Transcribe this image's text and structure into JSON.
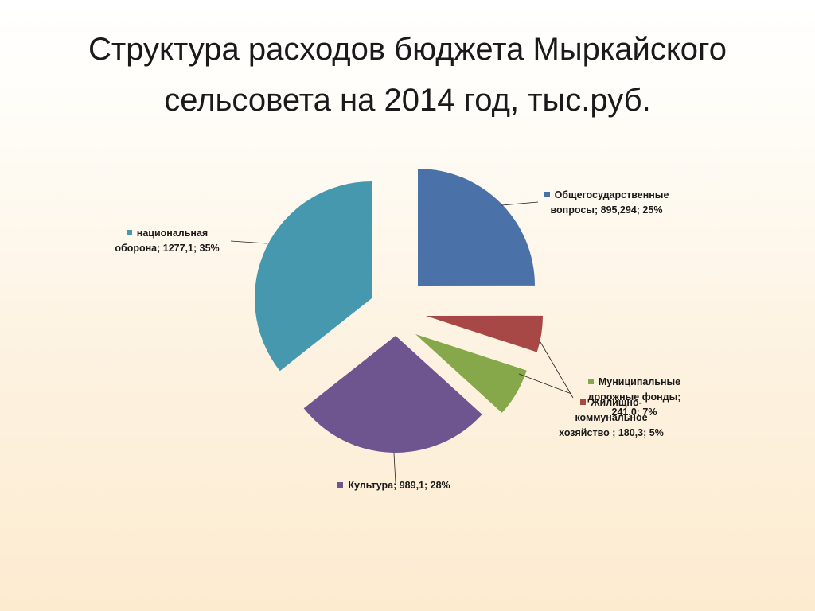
{
  "title": {
    "line1": "Структура расходов бюджета Мыркайского",
    "line2": "сельсовета на 2014 год, тыс.руб."
  },
  "chart_data": {
    "type": "pie",
    "exploded": true,
    "slices": [
      {
        "name": "Общегосударственные вопросы",
        "value": 895.294,
        "percent": 25,
        "color": "#4a72a8",
        "label_lines": [
          "Общегосударственные",
          "вопросы; 895,294; 25%"
        ]
      },
      {
        "name": "Жилищно-коммунальное хозяйство",
        "value": 180.3,
        "percent": 5,
        "color": "#a84846",
        "label_lines": [
          "Жилищно-",
          "коммунальное",
          "хозяйство ; 180,3; 5%"
        ]
      },
      {
        "name": "Муниципальные дорожные фонды",
        "value": 241.0,
        "percent": 7,
        "color": "#86a84b",
        "label_lines": [
          "Муниципальные",
          "дорожные фонды;",
          "241,0; 7%"
        ]
      },
      {
        "name": "Культура",
        "value": 989.1,
        "percent": 28,
        "color": "#6e5590",
        "label_lines": [
          "Культура; 989,1; 28%"
        ]
      },
      {
        "name": "национальная оборона",
        "value": 1277.1,
        "percent": 35,
        "color": "#4598ae",
        "label_lines": [
          "национальная",
          "оборона; 1277,1; 35%"
        ]
      }
    ]
  }
}
